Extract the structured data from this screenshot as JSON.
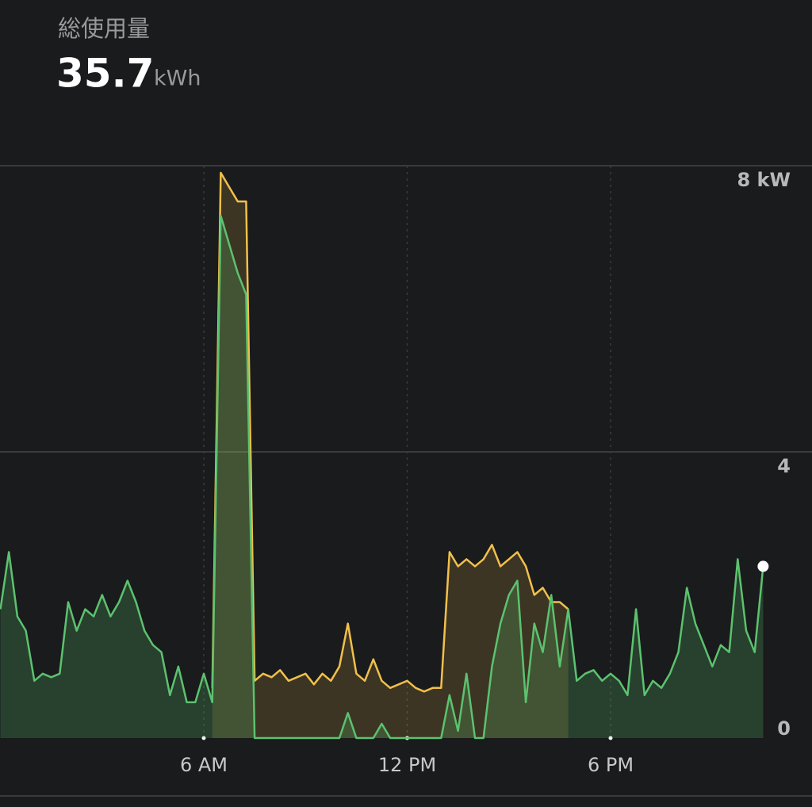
{
  "header": {
    "title": "総使用量",
    "value": "35.7",
    "unit": "kWh"
  },
  "chart_data": {
    "type": "area",
    "x": [
      0,
      0.25,
      0.5,
      0.75,
      1,
      1.25,
      1.5,
      1.75,
      2,
      2.25,
      2.5,
      2.75,
      3,
      3.25,
      3.5,
      3.75,
      4,
      4.25,
      4.5,
      4.75,
      5,
      5.25,
      5.5,
      5.75,
      6,
      6.25,
      6.5,
      6.75,
      7,
      7.25,
      7.5,
      7.75,
      8,
      8.25,
      8.5,
      8.75,
      9,
      9.25,
      9.5,
      9.75,
      10,
      10.25,
      10.5,
      10.75,
      11,
      11.25,
      11.5,
      11.75,
      12,
      12.25,
      12.5,
      12.75,
      13,
      13.25,
      13.5,
      13.75,
      14,
      14.25,
      14.5,
      14.75,
      15,
      15.25,
      15.5,
      15.75,
      16,
      16.25,
      16.5,
      16.75,
      17,
      17.25,
      17.5,
      17.75,
      18,
      18.25,
      18.5,
      18.75,
      19,
      19.25,
      19.5,
      19.75,
      20,
      20.25,
      20.5,
      20.75,
      21,
      21.25,
      21.5,
      21.75,
      22,
      22.25,
      22.5
    ],
    "series": [
      {
        "color": "#5cc26f",
        "values": [
          1.8,
          2.6,
          1.7,
          1.5,
          0.8,
          0.9,
          0.85,
          0.9,
          1.9,
          1.5,
          1.8,
          1.7,
          2.0,
          1.7,
          1.9,
          2.2,
          1.9,
          1.5,
          1.3,
          1.2,
          0.6,
          1.0,
          0.5,
          0.5,
          0.9,
          0.5,
          7.3,
          6.9,
          6.5,
          6.2,
          0,
          0,
          0,
          0,
          0,
          0,
          0,
          0,
          0,
          0,
          0,
          0.35,
          0,
          0,
          0,
          0.2,
          0,
          0,
          0,
          0,
          0,
          0,
          0,
          0.6,
          0.1,
          0.9,
          0,
          0,
          1.0,
          1.6,
          2.0,
          2.2,
          0.5,
          1.6,
          1.2,
          2.0,
          1.0,
          1.8,
          0.8,
          0.9,
          0.95,
          0.8,
          0.9,
          0.8,
          0.6,
          1.8,
          0.6,
          0.8,
          0.7,
          0.9,
          1.2,
          2.1,
          1.6,
          1.3,
          1.0,
          1.3,
          1.2,
          2.5,
          1.5,
          1.2,
          2.4
        ]
      },
      {
        "color": "#f2c04a",
        "values": [
          null,
          null,
          null,
          null,
          null,
          null,
          null,
          null,
          null,
          null,
          null,
          null,
          null,
          null,
          null,
          null,
          null,
          null,
          null,
          null,
          null,
          null,
          null,
          null,
          null,
          0.7,
          7.9,
          7.7,
          7.5,
          7.5,
          0.8,
          0.9,
          0.85,
          0.95,
          0.8,
          0.85,
          0.9,
          0.75,
          0.9,
          0.8,
          1.0,
          1.6,
          0.9,
          0.8,
          1.1,
          0.8,
          0.7,
          0.75,
          0.8,
          0.7,
          0.65,
          0.7,
          0.7,
          2.6,
          2.4,
          2.5,
          2.4,
          2.5,
          2.7,
          2.4,
          2.5,
          2.6,
          2.4,
          2.0,
          2.1,
          1.9,
          1.9,
          1.8,
          null,
          null,
          null,
          null,
          null,
          null,
          null,
          null,
          null,
          null,
          null,
          null,
          null,
          null,
          null,
          null,
          null,
          null,
          null,
          null,
          null,
          null,
          null
        ]
      }
    ],
    "xlim": [
      0,
      24
    ],
    "xticks": [
      {
        "value": 6,
        "label": "6 AM"
      },
      {
        "value": 12,
        "label": "12 PM"
      },
      {
        "value": 18,
        "label": "6 PM"
      }
    ],
    "ylim": [
      0,
      8
    ],
    "yticks": [
      0,
      4,
      {
        "value": 8,
        "label": "8 kW"
      }
    ],
    "grid": true
  }
}
